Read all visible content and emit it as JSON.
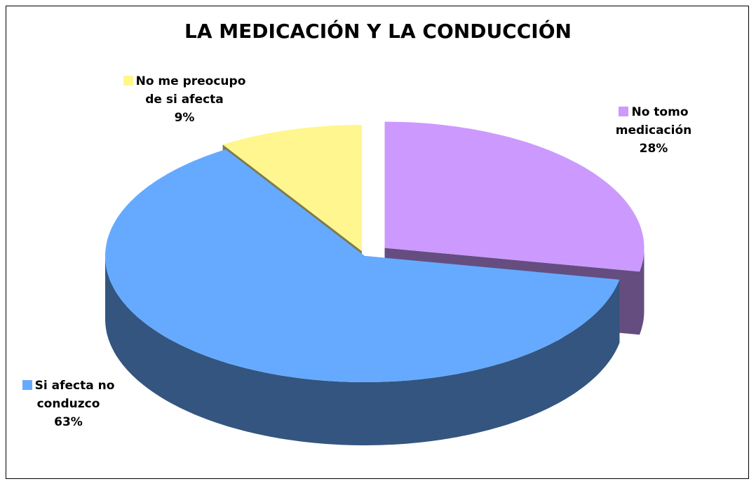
{
  "chart_data": {
    "type": "pie3d",
    "title": "LA MEDICACIÓN Y LA CONDUCCIÓN",
    "categories": [
      "No tomo medicación",
      "Si afecta no conduzco",
      "No me preocupo de si afecta"
    ],
    "values": [
      28,
      63,
      9
    ],
    "value_labels": [
      "28%",
      "63%",
      "9%"
    ],
    "colors": [
      "#cc99ff",
      "#66aaff",
      "#fff68f"
    ]
  }
}
